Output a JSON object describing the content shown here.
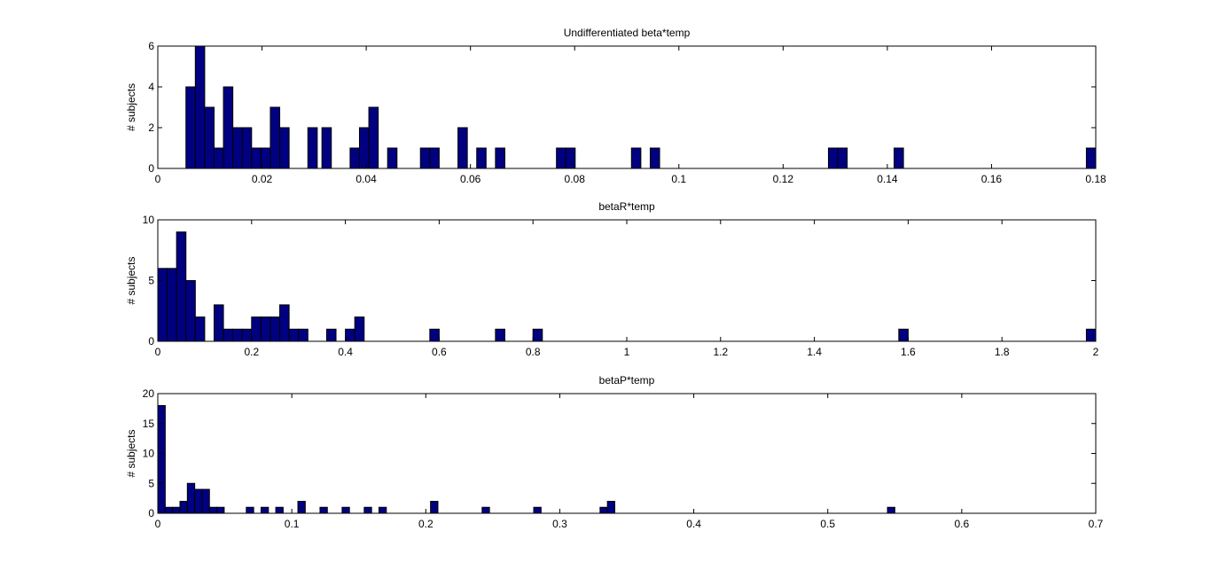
{
  "chart_data": [
    {
      "type": "bar",
      "title": "Undifferentiated beta*temp",
      "xlabel": "",
      "ylabel": "# subjects",
      "xlim": [
        0,
        0.18
      ],
      "ylim": [
        0,
        6
      ],
      "bin_width": 0.0018,
      "xticks": [
        0,
        0.02,
        0.04,
        0.06,
        0.08,
        0.1,
        0.12,
        0.14,
        0.16,
        0.18
      ],
      "xtick_labels": [
        "0",
        "0.02",
        "0.04",
        "0.06",
        "0.08",
        "0.1",
        "0.12",
        "0.14",
        "0.16",
        "0.18"
      ],
      "yticks": [
        0,
        2,
        4,
        6
      ],
      "ytick_labels": [
        "0",
        "2",
        "4",
        "6"
      ],
      "bins": [
        {
          "x": 0.0063,
          "count": 4
        },
        {
          "x": 0.0081,
          "count": 6
        },
        {
          "x": 0.0099,
          "count": 3
        },
        {
          "x": 0.0117,
          "count": 1
        },
        {
          "x": 0.0135,
          "count": 4
        },
        {
          "x": 0.0153,
          "count": 2
        },
        {
          "x": 0.0171,
          "count": 2
        },
        {
          "x": 0.0189,
          "count": 1
        },
        {
          "x": 0.0207,
          "count": 1
        },
        {
          "x": 0.0225,
          "count": 3
        },
        {
          "x": 0.0243,
          "count": 2
        },
        {
          "x": 0.0297,
          "count": 2
        },
        {
          "x": 0.0324,
          "count": 2
        },
        {
          "x": 0.0378,
          "count": 1
        },
        {
          "x": 0.0396,
          "count": 2
        },
        {
          "x": 0.0414,
          "count": 3
        },
        {
          "x": 0.045,
          "count": 1
        },
        {
          "x": 0.0513,
          "count": 1
        },
        {
          "x": 0.0531,
          "count": 1
        },
        {
          "x": 0.0585,
          "count": 2
        },
        {
          "x": 0.0621,
          "count": 1
        },
        {
          "x": 0.0657,
          "count": 1
        },
        {
          "x": 0.0774,
          "count": 1
        },
        {
          "x": 0.0792,
          "count": 1
        },
        {
          "x": 0.0918,
          "count": 1
        },
        {
          "x": 0.0954,
          "count": 1
        },
        {
          "x": 0.1296,
          "count": 1
        },
        {
          "x": 0.1314,
          "count": 1
        },
        {
          "x": 0.1422,
          "count": 1
        },
        {
          "x": 0.1791,
          "count": 1
        }
      ]
    },
    {
      "type": "bar",
      "title": "betaR*temp",
      "xlabel": "",
      "ylabel": "# subjects",
      "xlim": [
        0,
        2
      ],
      "ylim": [
        0,
        10
      ],
      "bin_width": 0.02,
      "xticks": [
        0,
        0.2,
        0.4,
        0.6,
        0.8,
        1,
        1.2,
        1.4,
        1.6,
        1.8,
        2
      ],
      "xtick_labels": [
        "0",
        "0.2",
        "0.4",
        "0.6",
        "0.8",
        "1",
        "1.2",
        "1.4",
        "1.6",
        "1.8",
        "2"
      ],
      "yticks": [
        0,
        5,
        10
      ],
      "ytick_labels": [
        "0",
        "5",
        "10"
      ],
      "bins": [
        {
          "x": 0.01,
          "count": 6
        },
        {
          "x": 0.03,
          "count": 6
        },
        {
          "x": 0.05,
          "count": 9
        },
        {
          "x": 0.07,
          "count": 5
        },
        {
          "x": 0.09,
          "count": 2
        },
        {
          "x": 0.13,
          "count": 3
        },
        {
          "x": 0.15,
          "count": 1
        },
        {
          "x": 0.17,
          "count": 1
        },
        {
          "x": 0.19,
          "count": 1
        },
        {
          "x": 0.21,
          "count": 2
        },
        {
          "x": 0.23,
          "count": 2
        },
        {
          "x": 0.25,
          "count": 2
        },
        {
          "x": 0.27,
          "count": 3
        },
        {
          "x": 0.29,
          "count": 1
        },
        {
          "x": 0.31,
          "count": 1
        },
        {
          "x": 0.37,
          "count": 1
        },
        {
          "x": 0.41,
          "count": 1
        },
        {
          "x": 0.43,
          "count": 2
        },
        {
          "x": 0.59,
          "count": 1
        },
        {
          "x": 0.73,
          "count": 1
        },
        {
          "x": 0.81,
          "count": 1
        },
        {
          "x": 1.59,
          "count": 1
        },
        {
          "x": 1.99,
          "count": 1
        }
      ]
    },
    {
      "type": "bar",
      "title": "betaP*temp",
      "xlabel": "",
      "ylabel": "# subjects",
      "xlim": [
        0,
        0.7
      ],
      "ylim": [
        0,
        20
      ],
      "bin_width": 0.0055,
      "xticks": [
        0,
        0.1,
        0.2,
        0.3,
        0.4,
        0.5,
        0.6,
        0.7
      ],
      "xtick_labels": [
        "0",
        "0.1",
        "0.2",
        "0.3",
        "0.4",
        "0.5",
        "0.6",
        "0.7"
      ],
      "yticks": [
        0,
        5,
        10,
        15,
        20
      ],
      "ytick_labels": [
        "0",
        "5",
        "10",
        "15",
        "20"
      ],
      "bins": [
        {
          "x": 0.0028,
          "count": 18
        },
        {
          "x": 0.0083,
          "count": 1
        },
        {
          "x": 0.0138,
          "count": 1
        },
        {
          "x": 0.0193,
          "count": 2
        },
        {
          "x": 0.0248,
          "count": 5
        },
        {
          "x": 0.0303,
          "count": 4
        },
        {
          "x": 0.0358,
          "count": 4
        },
        {
          "x": 0.0413,
          "count": 1
        },
        {
          "x": 0.0468,
          "count": 1
        },
        {
          "x": 0.0688,
          "count": 1
        },
        {
          "x": 0.0798,
          "count": 1
        },
        {
          "x": 0.0908,
          "count": 1
        },
        {
          "x": 0.1073,
          "count": 2
        },
        {
          "x": 0.1238,
          "count": 1
        },
        {
          "x": 0.1403,
          "count": 1
        },
        {
          "x": 0.1568,
          "count": 1
        },
        {
          "x": 0.1678,
          "count": 1
        },
        {
          "x": 0.2063,
          "count": 2
        },
        {
          "x": 0.2448,
          "count": 1
        },
        {
          "x": 0.2833,
          "count": 1
        },
        {
          "x": 0.3328,
          "count": 1
        },
        {
          "x": 0.3383,
          "count": 2
        },
        {
          "x": 0.5473,
          "count": 1
        }
      ]
    }
  ]
}
